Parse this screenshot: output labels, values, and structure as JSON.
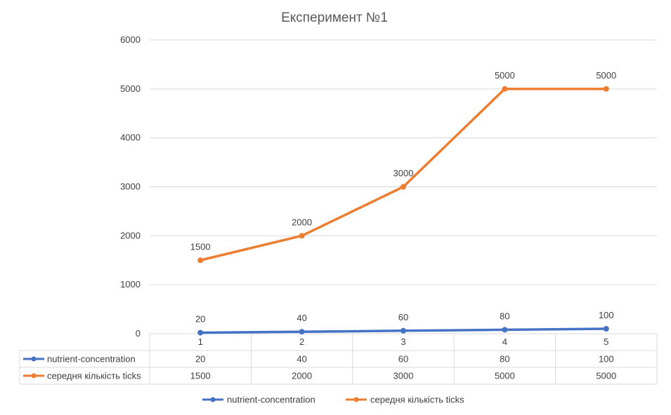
{
  "chart_data": {
    "type": "line",
    "title": "Експеримент №1",
    "categories": [
      "1",
      "2",
      "3",
      "4",
      "5"
    ],
    "ylim": [
      0,
      6000
    ],
    "yticks": [
      0,
      1000,
      2000,
      3000,
      4000,
      5000,
      6000
    ],
    "grid": true,
    "legend": "bottom",
    "data_table": true,
    "series": [
      {
        "name": "nutrient-concentration",
        "color": "#4472C4",
        "values": [
          20,
          40,
          60,
          80,
          100
        ]
      },
      {
        "name": "середня кількість ticks",
        "color": "#ED7D31",
        "values": [
          1500,
          2000,
          3000,
          5000,
          5000
        ]
      }
    ]
  }
}
